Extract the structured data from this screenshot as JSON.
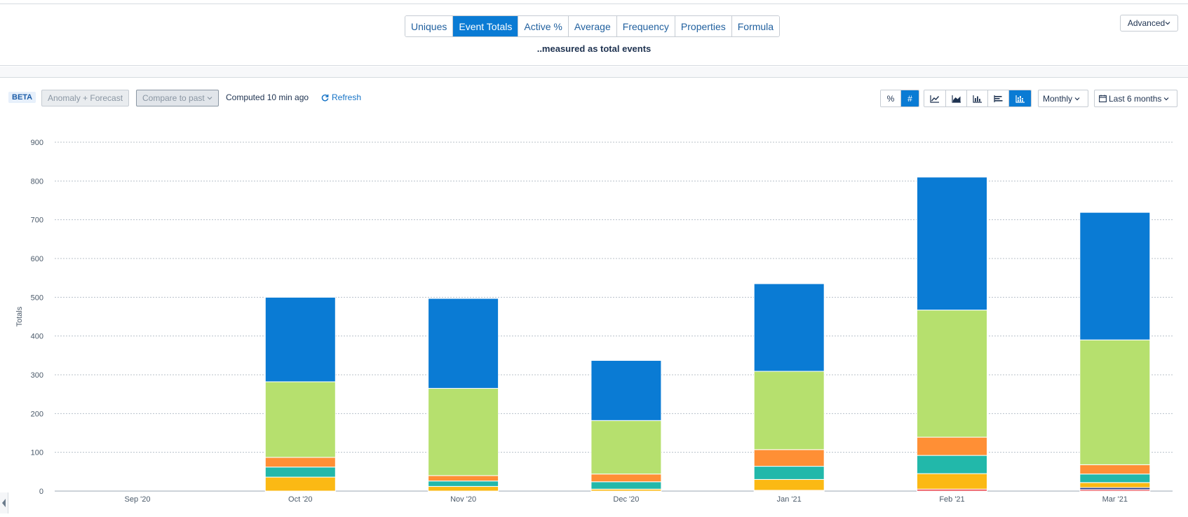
{
  "metric_tabs": [
    {
      "label": "Uniques",
      "active": false
    },
    {
      "label": "Event Totals",
      "active": true
    },
    {
      "label": "Active %",
      "active": false
    },
    {
      "label": "Average",
      "active": false
    },
    {
      "label": "Frequency",
      "active": false
    },
    {
      "label": "Properties",
      "active": false
    },
    {
      "label": "Formula",
      "active": false
    }
  ],
  "subtitle": "..measured as total events",
  "advanced_label": "Advanced",
  "toolbar": {
    "beta_label": "BETA",
    "anomaly_label": "Anomaly + Forecast",
    "compare_label": "Compare to past",
    "computed_label": "Computed 10 min ago",
    "refresh_label": "Refresh",
    "percent_label": "%",
    "count_label": "#",
    "interval_label": "Monthly",
    "range_label": "Last 6 months"
  },
  "chart_data": {
    "type": "bar",
    "stacked": true,
    "ylabel": "Totals",
    "xlabel": "",
    "ylim": [
      0,
      900
    ],
    "yticks": [
      0,
      100,
      200,
      300,
      400,
      500,
      600,
      700,
      800,
      900
    ],
    "categories": [
      "Sep '20",
      "Oct '20",
      "Nov '20",
      "Dec '20",
      "Jan '21",
      "Feb '21",
      "Mar '21"
    ],
    "series": [
      {
        "color": "#e8404a",
        "values": [
          0,
          0,
          0,
          0,
          2,
          5,
          4
        ]
      },
      {
        "color": "#1e3a8a",
        "values": [
          0,
          0,
          0,
          0,
          0,
          0,
          5
        ]
      },
      {
        "color": "#fbb914",
        "values": [
          0,
          36,
          12,
          5,
          28,
          40,
          13
        ]
      },
      {
        "color": "#22b8aa",
        "values": [
          0,
          26,
          14,
          19,
          34,
          47,
          22
        ]
      },
      {
        "color": "#ff8f35",
        "values": [
          0,
          25,
          14,
          20,
          43,
          47,
          24
        ]
      },
      {
        "color": "#b6e06e",
        "values": [
          0,
          195,
          225,
          138,
          202,
          328,
          322
        ]
      },
      {
        "color": "#0a7bd4",
        "values": [
          0,
          218,
          232,
          155,
          226,
          343,
          329
        ]
      }
    ],
    "grid": true,
    "legend": "none"
  }
}
